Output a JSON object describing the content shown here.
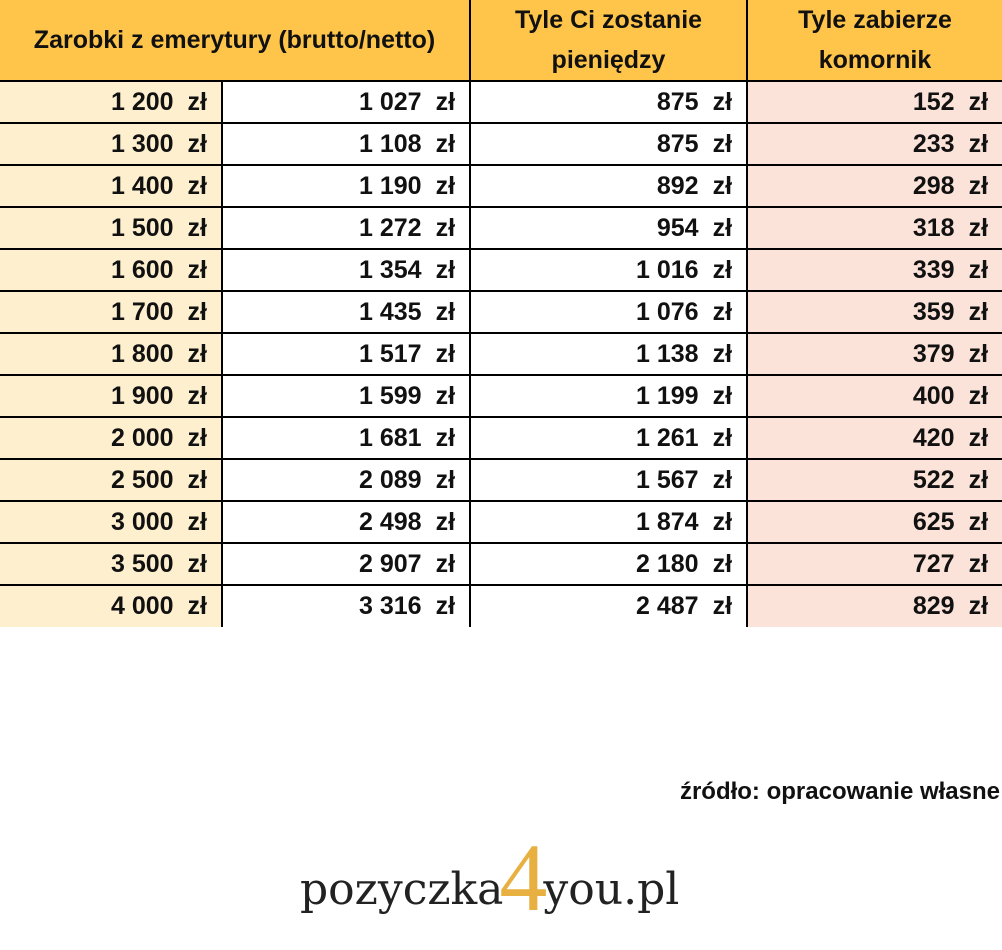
{
  "table": {
    "header": {
      "col12": "Zarobki z emerytury (brutto/netto)",
      "col3_line1": "Tyle Ci zostanie",
      "col3_line2": "pieniędzy",
      "col4_line1": "Tyle zabierze",
      "col4_line2": "komornik"
    },
    "currency": "zł",
    "rows": [
      [
        "1 200",
        "1 027",
        "875",
        "152"
      ],
      [
        "1 300",
        "1 108",
        "875",
        "233"
      ],
      [
        "1 400",
        "1 190",
        "892",
        "298"
      ],
      [
        "1 500",
        "1 272",
        "954",
        "318"
      ],
      [
        "1 600",
        "1 354",
        "1 016",
        "339"
      ],
      [
        "1 700",
        "1 435",
        "1 076",
        "359"
      ],
      [
        "1 800",
        "1 517",
        "1 138",
        "379"
      ],
      [
        "1 900",
        "1 599",
        "1 199",
        "400"
      ],
      [
        "2 000",
        "1 681",
        "1 261",
        "420"
      ],
      [
        "2 500",
        "2 089",
        "1 567",
        "522"
      ],
      [
        "3 000",
        "2 498",
        "1 874",
        "625"
      ],
      [
        "3 500",
        "2 907",
        "2 180",
        "727"
      ],
      [
        "4 000",
        "3 316",
        "2 487",
        "829"
      ]
    ]
  },
  "source": "źródło: opracowanie własne",
  "logo": {
    "left": "pozyczka",
    "digit": "4",
    "right": "you.pl"
  },
  "colors": {
    "header_bg": "#FFC54A",
    "col1_bg": "#FEF0CF",
    "col4_bg": "#FCE3D9",
    "logo_digit": "#E8B040"
  }
}
